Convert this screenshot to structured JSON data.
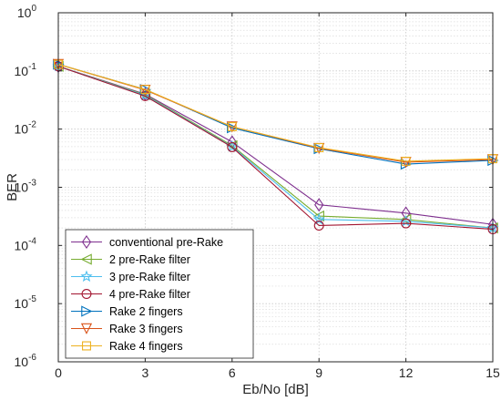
{
  "chart_data": {
    "type": "line",
    "xlabel": "Eb/No [dB]",
    "ylabel": "BER",
    "x": [
      0,
      3,
      6,
      9,
      12,
      15
    ],
    "xlim": [
      0,
      15
    ],
    "ylim": [
      1e-06,
      1
    ],
    "yscale": "log",
    "xticks": [
      "0",
      "3",
      "6",
      "9",
      "12",
      "15"
    ],
    "yticks": [
      {
        "base": "10",
        "exp": "0",
        "value": 1
      },
      {
        "base": "10",
        "exp": "-1",
        "value": 0.1
      },
      {
        "base": "10",
        "exp": "-2",
        "value": 0.01
      },
      {
        "base": "10",
        "exp": "-3",
        "value": 0.001
      },
      {
        "base": "10",
        "exp": "-4",
        "value": 0.0001
      },
      {
        "base": "10",
        "exp": "-5",
        "value": 1e-05
      },
      {
        "base": "10",
        "exp": "-6",
        "value": 1e-06
      }
    ],
    "grid": true,
    "legend_position": "bottom-left",
    "series": [
      {
        "name": "conventional pre-Rake",
        "color": "#7E2F8E",
        "marker": "diamond",
        "values": [
          0.12,
          0.04,
          0.006,
          0.0005,
          0.00036,
          0.00023
        ]
      },
      {
        "name": "2 pre-Rake filter",
        "color": "#77AC30",
        "marker": "triangle-left",
        "values": [
          0.12,
          0.039,
          0.0052,
          0.00032,
          0.00028,
          0.0002
        ]
      },
      {
        "name": "3 pre-Rake filter",
        "color": "#4DBEEE",
        "marker": "star",
        "values": [
          0.12,
          0.038,
          0.005,
          0.00028,
          0.00026,
          0.0002
        ]
      },
      {
        "name": "4 pre-Rake filter",
        "color": "#A2142F",
        "marker": "circle",
        "values": [
          0.12,
          0.037,
          0.0049,
          0.00022,
          0.00024,
          0.00019
        ]
      },
      {
        "name": "Rake 2 fingers",
        "color": "#0072BD",
        "marker": "triangle-right",
        "values": [
          0.13,
          0.048,
          0.0105,
          0.0046,
          0.0025,
          0.0029
        ]
      },
      {
        "name": "Rake 3 fingers",
        "color": "#D95319",
        "marker": "triangle-down",
        "values": [
          0.13,
          0.047,
          0.011,
          0.0047,
          0.0027,
          0.003
        ]
      },
      {
        "name": "Rake 4 fingers",
        "color": "#EDB120",
        "marker": "square",
        "values": [
          0.13,
          0.048,
          0.011,
          0.0048,
          0.0028,
          0.0031
        ]
      }
    ]
  }
}
